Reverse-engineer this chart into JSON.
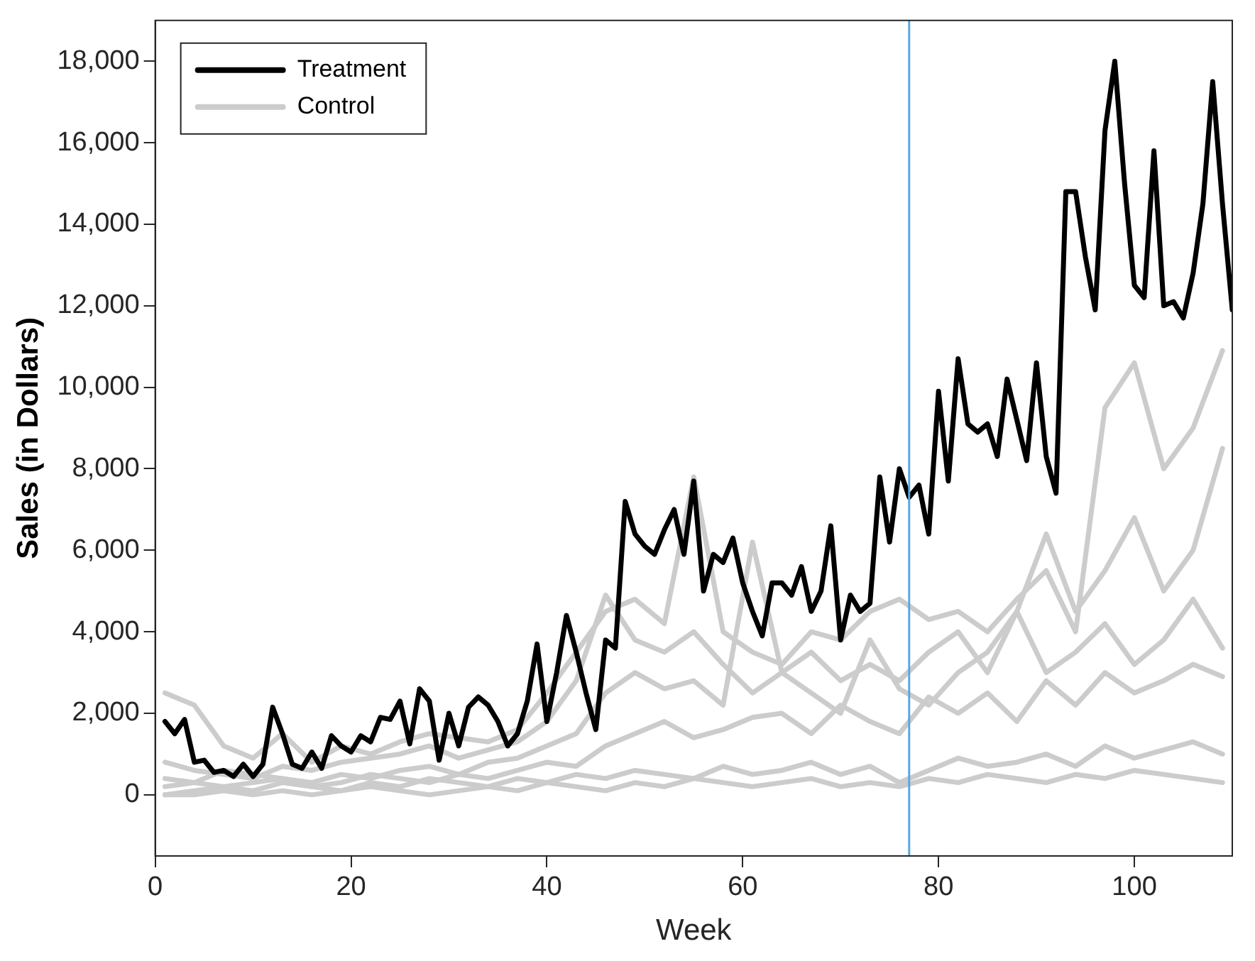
{
  "chart_data": {
    "type": "line",
    "xlabel": "Week",
    "ylabel": "Sales (in Dollars)",
    "xlim": [
      0,
      110
    ],
    "xticks": [
      0,
      20,
      40,
      60,
      80,
      100
    ],
    "ylim": [
      -1500,
      19000
    ],
    "yticks": [
      {
        "value": 0,
        "label": "0"
      },
      {
        "value": 2000,
        "label": "2,000"
      },
      {
        "value": 4000,
        "label": "4,000"
      },
      {
        "value": 6000,
        "label": "6,000"
      },
      {
        "value": 8000,
        "label": "8,000"
      },
      {
        "value": 10000,
        "label": "10,000"
      },
      {
        "value": 12000,
        "label": "12,000"
      },
      {
        "value": 14000,
        "label": "14,000"
      },
      {
        "value": 16000,
        "label": "16,000"
      },
      {
        "value": 18000,
        "label": "18,000"
      }
    ],
    "grid": false,
    "legend": "top left",
    "marker": "none",
    "line_style": "solid",
    "ref_lines": [
      {
        "axis": "x",
        "value": 77,
        "color": "#5aa7df",
        "line_style": "solid"
      }
    ],
    "series": [
      {
        "name": "Treatment",
        "color": "#000000",
        "x": [
          1,
          2,
          3,
          4,
          5,
          6,
          7,
          8,
          9,
          10,
          11,
          12,
          13,
          14,
          15,
          16,
          17,
          18,
          19,
          20,
          21,
          22,
          23,
          24,
          25,
          26,
          27,
          28,
          29,
          30,
          31,
          32,
          33,
          34,
          35,
          36,
          37,
          38,
          39,
          40,
          41,
          42,
          43,
          44,
          45,
          46,
          47,
          48,
          49,
          50,
          51,
          52,
          53,
          54,
          55,
          56,
          57,
          58,
          59,
          60,
          61,
          62,
          63,
          64,
          65,
          66,
          67,
          68,
          69,
          70,
          71,
          72,
          73,
          74,
          75,
          76,
          77,
          78,
          79,
          80,
          81,
          82,
          83,
          84,
          85,
          86,
          87,
          88,
          89,
          90,
          91,
          92,
          93,
          94,
          95,
          96,
          97,
          98,
          99,
          100,
          101,
          102,
          103,
          104,
          105,
          106,
          107,
          108,
          109,
          110
        ],
        "values": [
          1800,
          1500,
          1850,
          800,
          850,
          550,
          600,
          450,
          750,
          450,
          750,
          2150,
          1500,
          750,
          650,
          1050,
          650,
          1450,
          1200,
          1050,
          1450,
          1300,
          1900,
          1850,
          2300,
          1250,
          2600,
          2300,
          850,
          2000,
          1200,
          2150,
          2400,
          2200,
          1800,
          1200,
          1500,
          2300,
          3700,
          1800,
          3000,
          4400,
          3500,
          2500,
          1600,
          3800,
          3600,
          7200,
          6400,
          6100,
          5900,
          6500,
          7000,
          5900,
          7700,
          5000,
          5900,
          5700,
          6300,
          5200,
          4500,
          3900,
          5200,
          5200,
          4900,
          5600,
          4500,
          5000,
          6600,
          3800,
          4900,
          4500,
          4700,
          7800,
          6200,
          8000,
          7300,
          7600,
          6400,
          9900,
          7700,
          10700,
          9100,
          8900,
          9100,
          8300,
          10200,
          9200,
          8200,
          10600,
          8300,
          7400,
          14800,
          14800,
          13200,
          11900,
          16300,
          18000,
          15000,
          12500,
          12200,
          15800,
          12000,
          12100,
          11700,
          12800,
          14500,
          17500,
          14500,
          11900
        ]
      },
      {
        "name": "Control",
        "color": "#cccccc",
        "x": [
          1,
          4,
          7,
          10,
          13,
          16,
          19,
          22,
          25,
          28,
          31,
          34,
          37,
          40,
          43,
          46,
          49,
          52,
          55,
          58,
          61,
          64,
          67,
          70,
          73,
          76,
          79,
          82,
          85,
          88,
          91,
          94,
          97,
          100,
          103,
          106,
          109
        ],
        "values": [
          2500,
          2200,
          1200,
          900,
          1500,
          800,
          1200,
          1000,
          1300,
          1500,
          1400,
          1300,
          1600,
          2500,
          3500,
          4500,
          4800,
          4200,
          7800,
          4000,
          3500,
          3200,
          4000,
          3800,
          4500,
          4800,
          4300,
          4500,
          4000,
          4800,
          5500,
          4000,
          9500,
          10600,
          8000,
          9000,
          10900
        ]
      },
      {
        "color": "#cccccc",
        "x": [
          1,
          4,
          7,
          10,
          13,
          16,
          19,
          22,
          25,
          28,
          31,
          34,
          37,
          40,
          43,
          46,
          49,
          52,
          55,
          58,
          61,
          64,
          67,
          70,
          73,
          76,
          79,
          82,
          85,
          88,
          91,
          94,
          97,
          100,
          103,
          106,
          109
        ],
        "values": [
          800,
          600,
          500,
          400,
          700,
          600,
          800,
          900,
          1000,
          1200,
          900,
          1100,
          1300,
          1800,
          2800,
          4900,
          3800,
          3500,
          4000,
          3200,
          2500,
          3000,
          3500,
          2800,
          3200,
          2800,
          3500,
          4000,
          3000,
          4500,
          6400,
          4500,
          5500,
          6800,
          5000,
          6000,
          8500
        ]
      },
      {
        "color": "#cccccc",
        "x": [
          1,
          4,
          7,
          10,
          13,
          16,
          19,
          22,
          25,
          28,
          31,
          34,
          37,
          40,
          43,
          46,
          49,
          52,
          55,
          58,
          61,
          64,
          67,
          70,
          73,
          76,
          79,
          82,
          85,
          88,
          91,
          94,
          97,
          100,
          103,
          106,
          109
        ],
        "values": [
          400,
          300,
          600,
          500,
          400,
          300,
          500,
          400,
          600,
          700,
          500,
          800,
          900,
          1200,
          1500,
          2500,
          3000,
          2600,
          2800,
          2200,
          6200,
          3000,
          2500,
          2000,
          3800,
          2600,
          2200,
          3000,
          3500,
          4500,
          3000,
          3500,
          4200,
          3200,
          3800,
          4800,
          3600
        ]
      },
      {
        "color": "#cccccc",
        "x": [
          1,
          4,
          7,
          10,
          13,
          16,
          19,
          22,
          25,
          28,
          31,
          34,
          37,
          40,
          43,
          46,
          49,
          52,
          55,
          58,
          61,
          64,
          67,
          70,
          73,
          76,
          79,
          82,
          85,
          88,
          91,
          94,
          97,
          100,
          103,
          106,
          109
        ],
        "values": [
          200,
          300,
          200,
          300,
          400,
          200,
          300,
          500,
          400,
          300,
          500,
          400,
          600,
          800,
          700,
          1200,
          1500,
          1800,
          1400,
          1600,
          1900,
          2000,
          1500,
          2200,
          1800,
          1500,
          2400,
          2000,
          2500,
          1800,
          2800,
          2200,
          3000,
          2500,
          2800,
          3200,
          2900
        ]
      },
      {
        "color": "#cccccc",
        "x": [
          1,
          4,
          7,
          10,
          13,
          16,
          19,
          22,
          25,
          28,
          31,
          34,
          37,
          40,
          43,
          46,
          49,
          52,
          55,
          58,
          61,
          64,
          67,
          70,
          73,
          76,
          79,
          82,
          85,
          88,
          91,
          94,
          97,
          100,
          103,
          106,
          109
        ],
        "values": [
          0,
          100,
          200,
          100,
          300,
          200,
          100,
          300,
          200,
          400,
          300,
          200,
          400,
          300,
          500,
          400,
          600,
          500,
          400,
          700,
          500,
          600,
          800,
          500,
          700,
          300,
          600,
          900,
          700,
          800,
          1000,
          700,
          1200,
          900,
          1100,
          1300,
          1000
        ]
      },
      {
        "color": "#cccccc",
        "x": [
          1,
          4,
          7,
          10,
          13,
          16,
          19,
          22,
          25,
          28,
          31,
          34,
          37,
          40,
          43,
          46,
          49,
          52,
          55,
          58,
          61,
          64,
          67,
          70,
          73,
          76,
          79,
          82,
          85,
          88,
          91,
          94,
          97,
          100,
          103,
          106,
          109
        ],
        "values": [
          0,
          0,
          100,
          0,
          100,
          0,
          100,
          200,
          100,
          0,
          100,
          200,
          100,
          300,
          200,
          100,
          300,
          200,
          400,
          300,
          200,
          300,
          400,
          200,
          300,
          200,
          400,
          300,
          500,
          400,
          300,
          500,
          400,
          600,
          500,
          400,
          300
        ]
      }
    ]
  }
}
